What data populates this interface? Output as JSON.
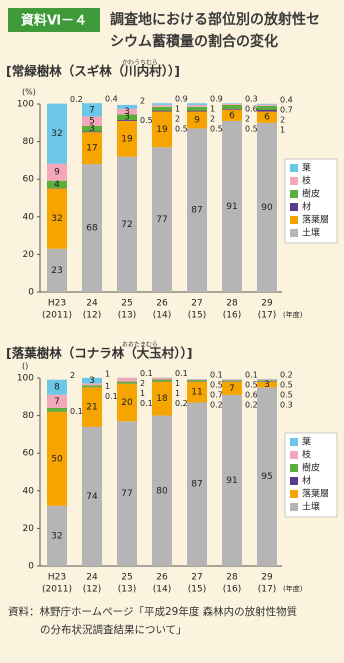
{
  "header": {
    "label": "資料Ⅵ－４",
    "title": [
      "調査地における部位別の放射性セ",
      "シウム蓄積量の割合の変化"
    ]
  },
  "chart_data": [
    {
      "type": "bar",
      "stacked": true,
      "title": "[常緑樹林（スギ林（川内村））]",
      "ruby": "かわうちむら",
      "y_unit": "(%)",
      "x_unit": "(年度)",
      "categories": [
        "H23",
        "24",
        "25",
        "26",
        "27",
        "28",
        "29"
      ],
      "category_years": [
        "(2011)",
        "(12)",
        "(13)",
        "(14)",
        "(15)",
        "(16)",
        "(17)"
      ],
      "ylim": [
        0,
        100
      ],
      "yticks": [
        0,
        20,
        40,
        60,
        80,
        100
      ],
      "series": [
        {
          "name": "葉",
          "color": "#6cc6e8",
          "values": [
            32,
            7,
            2,
            0.9,
            0.9,
            0.3,
            0.4
          ]
        },
        {
          "name": "枝",
          "color": "#f4a6bb",
          "values": [
            9,
            5,
            3,
            1,
            1,
            0.6,
            0.7
          ]
        },
        {
          "name": "樹皮",
          "color": "#5aae3a",
          "values": [
            4,
            3,
            3,
            2,
            2,
            2,
            2
          ]
        },
        {
          "name": "材",
          "color": "#5a3b8e",
          "values": [
            0.2,
            0.4,
            0.5,
            0.5,
            0.5,
            0.5,
            1
          ]
        },
        {
          "name": "落葉層",
          "color": "#f5a400",
          "values": [
            32,
            17,
            19,
            19,
            9,
            6,
            6
          ]
        },
        {
          "name": "土壌",
          "color": "#b5b5b5",
          "values": [
            23,
            68,
            72,
            77,
            87,
            91,
            90
          ]
        }
      ]
    },
    {
      "type": "bar",
      "stacked": true,
      "title": "[落葉樹林（コナラ林（大玉村））]",
      "ruby": "おおたまむら",
      "y_unit": "()",
      "x_unit": "(年度)",
      "categories": [
        "H23",
        "24",
        "25",
        "26",
        "27",
        "28",
        "29"
      ],
      "category_years": [
        "(2011)",
        "(12)",
        "(13)",
        "(14)",
        "(15)",
        "(16)",
        "(17)"
      ],
      "ylim": [
        0,
        100
      ],
      "yticks": [
        0,
        20,
        40,
        60,
        80,
        100
      ],
      "series": [
        {
          "name": "葉",
          "color": "#6cc6e8",
          "values": [
            8,
            3,
            0.1,
            0.1,
            0.1,
            0.1,
            0.2
          ]
        },
        {
          "name": "枝",
          "color": "#f4a6bb",
          "values": [
            7,
            1,
            2,
            1,
            0.5,
            0.5,
            0.5
          ]
        },
        {
          "name": "樹皮",
          "color": "#5aae3a",
          "values": [
            2,
            1,
            1,
            1,
            0.7,
            0.6,
            0.5
          ]
        },
        {
          "name": "材",
          "color": "#5a3b8e",
          "values": [
            0.1,
            0.1,
            0.1,
            0.2,
            0.2,
            0.2,
            0.3
          ]
        },
        {
          "name": "落葉層",
          "color": "#f5a400",
          "values": [
            50,
            21,
            20,
            18,
            11,
            7,
            3
          ]
        },
        {
          "name": "土壌",
          "color": "#b5b5b5",
          "values": [
            32,
            74,
            77,
            80,
            87,
            91,
            95
          ]
        }
      ]
    }
  ],
  "source": [
    "資料：林野庁ホームページ「平成29年度 森林内の放射性物質",
    "の分布状況調査結果について」"
  ]
}
